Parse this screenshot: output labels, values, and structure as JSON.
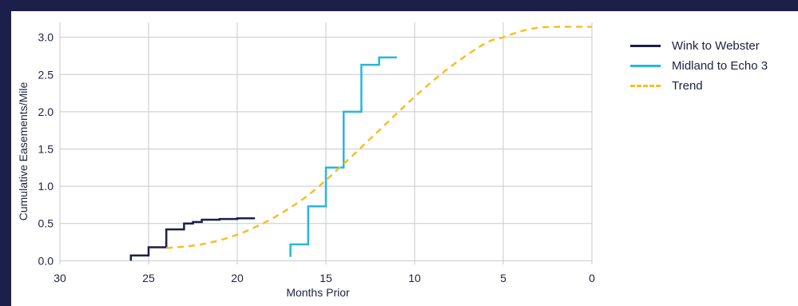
{
  "chart_data": {
    "type": "line",
    "title": "",
    "xlabel": "Months Prior",
    "ylabel": "Cumulative Easements/Mile",
    "xlim": [
      30,
      0
    ],
    "ylim": [
      -0.05,
      3.2
    ],
    "x_ticks": [
      "30",
      "25",
      "20",
      "15",
      "10",
      "5",
      "0"
    ],
    "y_ticks": [
      "0.0",
      "0.5",
      "1.0",
      "1.5",
      "2.0",
      "2.5",
      "3.0"
    ],
    "x_tick_values": [
      30,
      25,
      20,
      15,
      10,
      5,
      0
    ],
    "y_tick_values": [
      0,
      0.5,
      1.0,
      1.5,
      2.0,
      2.5,
      3.0
    ],
    "grid": true,
    "legend_position": "top-right-outside",
    "series": [
      {
        "name": "Wink to Webster",
        "color": "#1e1f45",
        "style": "step",
        "x": [
          26,
          26,
          25,
          25,
          24,
          24,
          23,
          23,
          22.5,
          22.5,
          22,
          22,
          21,
          21,
          20,
          20,
          19
        ],
        "y": [
          0,
          0.07,
          0.07,
          0.18,
          0.18,
          0.42,
          0.42,
          0.5,
          0.5,
          0.52,
          0.52,
          0.55,
          0.55,
          0.56,
          0.56,
          0.57,
          0.57
        ]
      },
      {
        "name": "Midland to Echo 3",
        "color": "#29b6dc",
        "style": "step",
        "x": [
          17,
          17,
          16,
          16,
          15,
          15,
          14,
          14,
          13,
          13,
          12,
          12,
          11
        ],
        "y": [
          0.05,
          0.22,
          0.22,
          0.73,
          0.73,
          1.25,
          1.25,
          2.0,
          2.0,
          2.63,
          2.63,
          2.73,
          2.73
        ]
      },
      {
        "name": "Trend",
        "color": "#f5c023",
        "style": "dashed",
        "x": [
          24,
          22,
          20,
          18,
          16,
          14,
          12,
          10,
          8,
          6,
          5,
          4,
          3,
          2,
          0
        ],
        "y": [
          0.17,
          0.22,
          0.35,
          0.57,
          0.88,
          1.3,
          1.75,
          2.2,
          2.6,
          2.92,
          3.0,
          3.08,
          3.13,
          3.14,
          3.14
        ]
      }
    ]
  }
}
